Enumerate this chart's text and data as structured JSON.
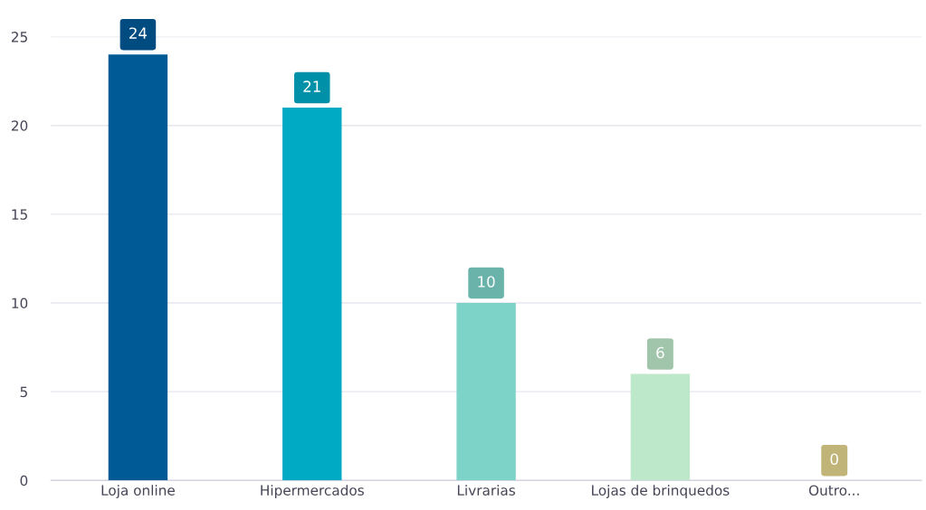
{
  "chart_data": {
    "type": "bar",
    "categories": [
      "Loja online",
      "Hipermercados",
      "Livrarias",
      "Lojas de brinquedos",
      "Outro..."
    ],
    "values": [
      24,
      21,
      10,
      6,
      0
    ],
    "colors": [
      "#005a96",
      "#00a9c4",
      "#7dd3c8",
      "#bde8c9",
      "#e3d48e"
    ],
    "ylim": [
      0,
      25
    ],
    "yticks": [
      0,
      5,
      10,
      15,
      20,
      25
    ],
    "grid": "y",
    "data_labels": true
  }
}
